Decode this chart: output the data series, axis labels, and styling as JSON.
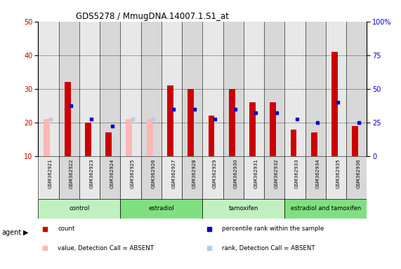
{
  "title": "GDS5278 / MmugDNA.14007.1.S1_at",
  "samples": [
    "GSM362921",
    "GSM362922",
    "GSM362923",
    "GSM362924",
    "GSM362925",
    "GSM362926",
    "GSM362927",
    "GSM362928",
    "GSM362929",
    "GSM362930",
    "GSM362931",
    "GSM362932",
    "GSM362933",
    "GSM362934",
    "GSM362935",
    "GSM362936"
  ],
  "count_values": [
    null,
    32,
    20,
    17,
    null,
    null,
    31,
    30,
    22,
    30,
    26,
    26,
    18,
    17,
    41,
    19
  ],
  "rank_values": [
    null,
    25,
    21,
    19,
    null,
    null,
    24,
    24,
    21,
    24,
    23,
    23,
    21,
    20,
    26,
    20
  ],
  "absent_count_values": [
    21,
    null,
    null,
    null,
    21,
    21,
    null,
    null,
    null,
    null,
    null,
    null,
    null,
    null,
    null,
    null
  ],
  "absent_rank_values": [
    21,
    null,
    null,
    null,
    21,
    21,
    null,
    null,
    null,
    null,
    null,
    null,
    null,
    null,
    null,
    null
  ],
  "groups": [
    {
      "label": "control",
      "start": 0,
      "end": 4,
      "color": "#c0f0c0"
    },
    {
      "label": "estradiol",
      "start": 4,
      "end": 8,
      "color": "#80e080"
    },
    {
      "label": "tamoxifen",
      "start": 8,
      "end": 12,
      "color": "#c0f0c0"
    },
    {
      "label": "estradiol and tamoxifen",
      "start": 12,
      "end": 16,
      "color": "#80e080"
    }
  ],
  "ylim_left": [
    10,
    50
  ],
  "ylim_right": [
    0,
    100
  ],
  "yticks_left": [
    10,
    20,
    30,
    40,
    50
  ],
  "yticks_right": [
    0,
    25,
    50,
    75,
    100
  ],
  "count_color": "#cc0000",
  "rank_color": "#0000cc",
  "absent_count_color": "#ffb6b6",
  "absent_rank_color": "#b8cce4",
  "bar_width": 0.55,
  "background_color": "#ffffff",
  "col_colors": [
    "#e8e8e8",
    "#d8d8d8"
  ]
}
